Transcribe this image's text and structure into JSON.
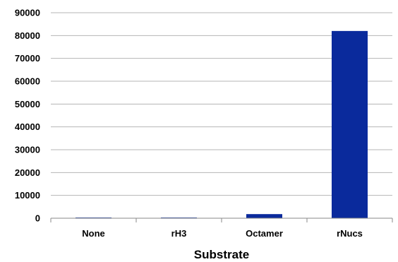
{
  "chart_data": {
    "type": "bar",
    "categories": [
      "None",
      "rH3",
      "Octamer",
      "rNucs"
    ],
    "values": [
      300,
      300,
      1800,
      82000
    ],
    "xlabel": "Substrate",
    "ylabel": "",
    "ylim": [
      0,
      90000
    ],
    "yticks": [
      "0",
      "10000",
      "20000",
      "30000",
      "40000",
      "50000",
      "60000",
      "70000",
      "80000",
      "90000"
    ],
    "grid": true,
    "legend": "none",
    "bar_color": "#0a2a9c",
    "grid_color": "#b5b5b5"
  }
}
